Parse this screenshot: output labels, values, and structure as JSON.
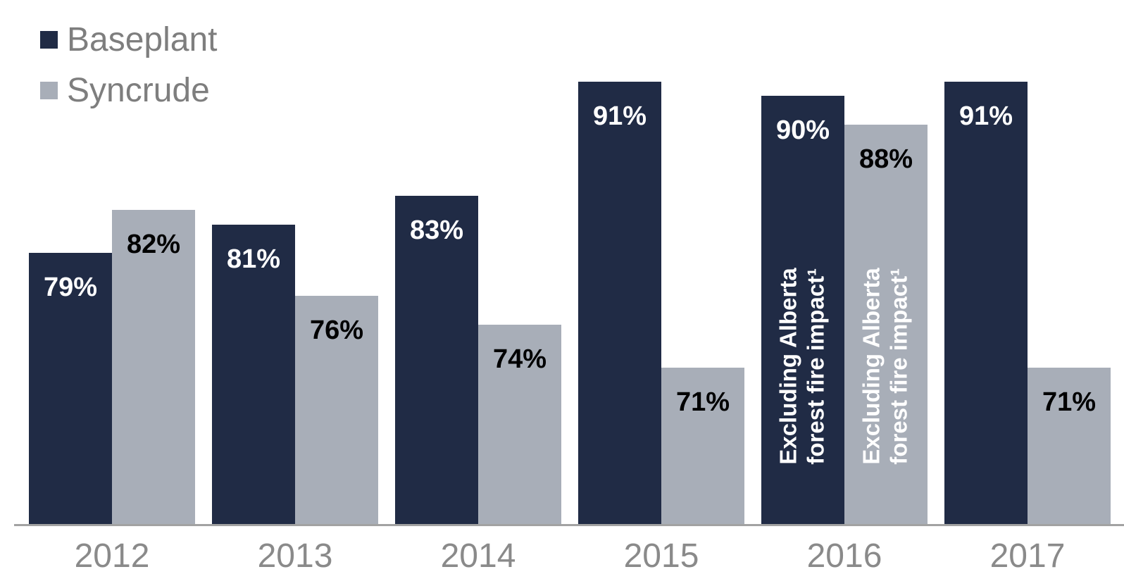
{
  "chart_data": {
    "type": "bar",
    "title": "",
    "categories": [
      "2012",
      "2013",
      "2014",
      "2015",
      "2016",
      "2017"
    ],
    "series": [
      {
        "name": "Baseplant",
        "color": "#202B45",
        "label_color": "#FFFFFF",
        "values": [
          79,
          81,
          83,
          91,
          90,
          91
        ]
      },
      {
        "name": "Syncrude",
        "color": "#A8AEB8",
        "label_color": "#000000",
        "values": [
          82,
          76,
          74,
          71,
          88,
          71
        ]
      }
    ],
    "value_suffix": "%",
    "annotations": [
      {
        "category": "2016",
        "series": "Baseplant",
        "text": "Excluding Alberta\nforest fire impact¹",
        "color": "#FFFFFF"
      },
      {
        "category": "2016",
        "series": "Syncrude",
        "text": "Excluding Alberta\nforest fire impact¹",
        "color": "#FFFFFF"
      }
    ],
    "ylim": [
      60,
      93
    ],
    "grid": false,
    "legend_position": "top-left",
    "axis_text_color": "#8A8A8A",
    "legend_text_color": "#7E7E7E",
    "baseline_color": "#A2A2A2"
  }
}
